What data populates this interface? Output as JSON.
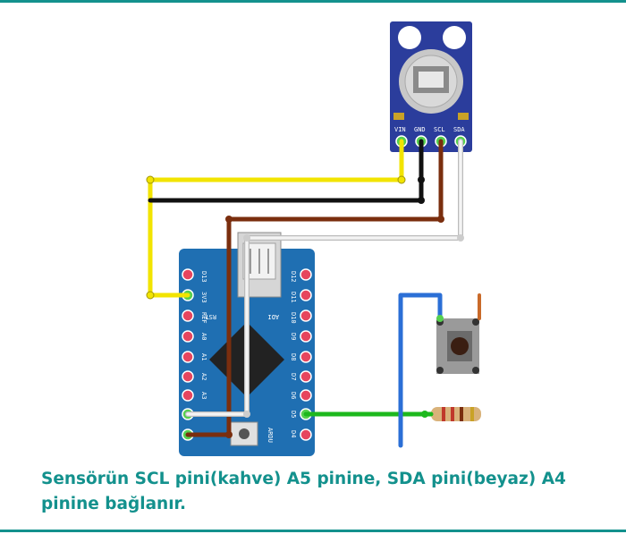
{
  "caption": {
    "line1": "Sensörün SCL pini(kahve) A5 pinine, SDA pini(beyaz) A4",
    "line2": "pinine bağlanır."
  },
  "sensor": {
    "pins": [
      "VIN",
      "GND",
      "SCL",
      "SDA"
    ]
  },
  "arduino": {
    "left_pins": [
      "D13",
      "3V3",
      "REF",
      "A0",
      "A1",
      "A2",
      "A3"
    ],
    "right_pins": [
      "D12",
      "D11",
      "D10",
      "D9",
      "D8",
      "D7",
      "D6",
      "D5",
      "D4"
    ],
    "labels": [
      "RST",
      "ADI",
      "ARDU"
    ]
  },
  "colors": {
    "accent": "#13918d",
    "board": "#1f6fb2",
    "sensor_board": "#2b3d9c",
    "wire_yellow": "#f2e400",
    "wire_black": "#111111",
    "wire_brown": "#7a2e0e",
    "wire_white": "#eeeeee",
    "wire_green": "#1db81d",
    "wire_blue": "#2b6fd6"
  }
}
